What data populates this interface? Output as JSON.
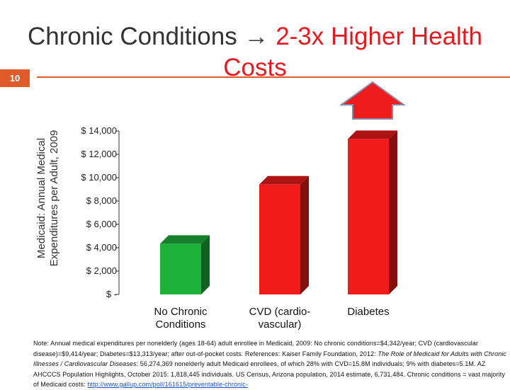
{
  "slide": {
    "title_part1": "Chronic Conditions",
    "title_part2": "2-3x Higher Health Costs",
    "number": "10"
  },
  "chart_data": {
    "type": "bar",
    "title": "",
    "ylabel": "Medicaid: Annual Medical Expenditures per Adult, 2009",
    "xlabel": "",
    "categories": [
      "No Chronic Conditions",
      "CVD (cardio-vascular)",
      "Diabetes"
    ],
    "category_lines": [
      [
        "No Chronic",
        "Conditions"
      ],
      [
        "CVD (cardio-",
        "vascular)"
      ],
      [
        "Diabetes"
      ]
    ],
    "values": [
      4342,
      9414,
      13313
    ],
    "bar_colors": [
      "#1fb23a",
      "#f21b1b",
      "#f21b1b"
    ],
    "ylim": [
      0,
      14000
    ],
    "yticks": [
      0,
      2000,
      4000,
      6000,
      8000,
      10000,
      12000,
      14000
    ],
    "ytick_labels": [
      "$ -",
      "$ 2,000",
      "$ 4,000",
      "$ 6,000",
      "$ 8,000",
      "$ 10,000",
      "$ 12,000",
      "$ 14,000"
    ],
    "grid": false,
    "legend": "none",
    "annotation": "red up arrow above Diabetes bar"
  },
  "note": {
    "text1": "Note: Annual medical expenditures per nonelderly (ages 18-64) adult enrollee in Medicaid, 2009: No chronic conditions=$4,342/year; CVD (cardiovascular disease)=$9,414/year; Diabetes=$13,313/year; after out-of-pocket costs. References: Kaiser Family Foundation, 2012: ",
    "italic1": "The Role of Medicaid for Adults with Chronic Illnesses / Cardiovascular Diseases",
    "text2": ": 56,274,369 nonelderly adult Medicaid enrollees, of which 28% with CVD=15.8M individuals; 9% with diabetes=5.1M. AZ AHCCCS Population Highlights, October 2015: 1,818,445 individuals. US Census, Arizona population, 2014 estimate, 6,731,484. Chronic conditions = vast majority of Medicaid costs: ",
    "link": "http://www.gallup.com/poll/161615/preventable-chronic-"
  }
}
